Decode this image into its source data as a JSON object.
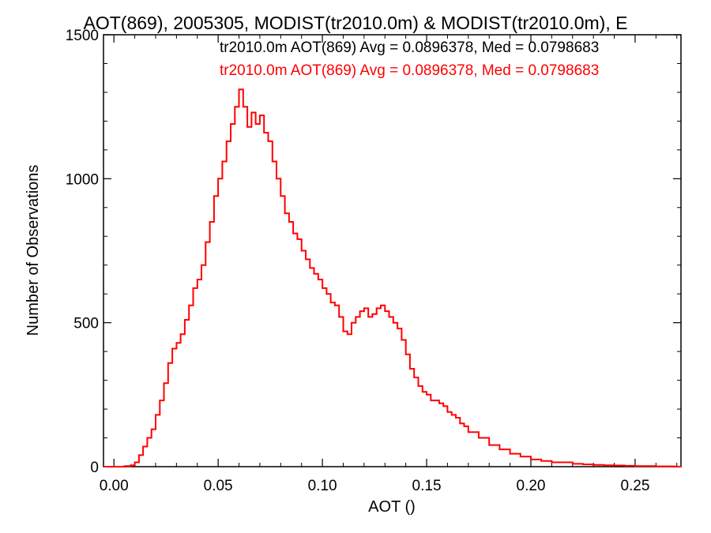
{
  "chart_data": {
    "type": "line",
    "title": "AOT(869), 2005305, MODIST(tr2010.0m) & MODIST(tr2010.0m), E",
    "xlabel": "AOT ()",
    "ylabel": "Number of Observations",
    "xlim": [
      -0.005,
      0.272
    ],
    "ylim": [
      0,
      1500
    ],
    "xticks": [
      "0.00",
      "0.05",
      "0.10",
      "0.15",
      "0.20",
      "0.25"
    ],
    "yticks": [
      "0",
      "500",
      "1000",
      "1500"
    ],
    "grid": false,
    "legend_position": "top-right",
    "legend": [
      {
        "text": "tr2010.0m AOT(869) Avg = 0.0896378, Med = 0.0798683",
        "color": "#000000"
      },
      {
        "text": "tr2010.0m AOT(869) Avg = 0.0896378, Med = 0.0798683",
        "color": "#ff0000"
      }
    ],
    "series": [
      {
        "color": "#ff0000",
        "style": "step",
        "x": [
          -0.005,
          0.0,
          0.005,
          0.008,
          0.01,
          0.012,
          0.014,
          0.016,
          0.018,
          0.02,
          0.022,
          0.024,
          0.026,
          0.028,
          0.03,
          0.032,
          0.034,
          0.036,
          0.038,
          0.04,
          0.042,
          0.044,
          0.046,
          0.048,
          0.05,
          0.052,
          0.054,
          0.056,
          0.058,
          0.06,
          0.062,
          0.064,
          0.066,
          0.068,
          0.07,
          0.072,
          0.074,
          0.076,
          0.078,
          0.08,
          0.082,
          0.084,
          0.086,
          0.088,
          0.09,
          0.092,
          0.094,
          0.096,
          0.098,
          0.1,
          0.102,
          0.104,
          0.106,
          0.108,
          0.11,
          0.112,
          0.114,
          0.116,
          0.118,
          0.12,
          0.122,
          0.124,
          0.126,
          0.128,
          0.13,
          0.132,
          0.134,
          0.136,
          0.138,
          0.14,
          0.142,
          0.144,
          0.146,
          0.148,
          0.15,
          0.152,
          0.154,
          0.156,
          0.158,
          0.16,
          0.162,
          0.164,
          0.166,
          0.168,
          0.17,
          0.175,
          0.18,
          0.185,
          0.19,
          0.195,
          0.2,
          0.205,
          0.21,
          0.215,
          0.22,
          0.225,
          0.23,
          0.235,
          0.24,
          0.245,
          0.25,
          0.255,
          0.26,
          0.265,
          0.27
        ],
        "y": [
          0,
          0,
          2,
          5,
          15,
          40,
          70,
          100,
          130,
          180,
          230,
          290,
          360,
          410,
          430,
          460,
          510,
          560,
          620,
          650,
          700,
          780,
          850,
          940,
          1000,
          1060,
          1130,
          1190,
          1250,
          1310,
          1250,
          1180,
          1230,
          1190,
          1220,
          1160,
          1130,
          1060,
          1000,
          940,
          880,
          850,
          810,
          790,
          750,
          720,
          690,
          670,
          650,
          620,
          600,
          570,
          560,
          520,
          470,
          460,
          500,
          520,
          540,
          550,
          520,
          530,
          550,
          560,
          540,
          520,
          500,
          480,
          440,
          390,
          340,
          310,
          280,
          260,
          250,
          230,
          230,
          220,
          210,
          190,
          180,
          170,
          150,
          140,
          120,
          100,
          75,
          60,
          45,
          35,
          25,
          20,
          15,
          15,
          10,
          8,
          6,
          5,
          4,
          3,
          2,
          2,
          1,
          1,
          0
        ]
      }
    ]
  }
}
